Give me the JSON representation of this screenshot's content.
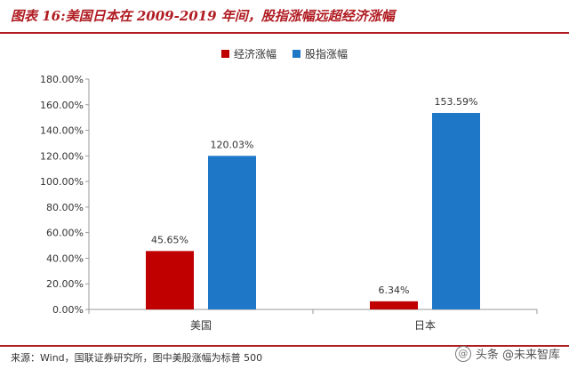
{
  "title": "图表 16:美国日本在 2009-2019 年间，股指涨幅远超经济涨幅",
  "source": "来源：Wind，国联证券研究所，图中美股涨幅为标普 500",
  "watermark": {
    "text": "头条 @未来智库",
    "logo_icon": "at-sign-icon"
  },
  "colors": {
    "economy": "#c00000",
    "stock": "#1f77c8",
    "accent": "#b01c22"
  },
  "chart_data": {
    "type": "bar",
    "title": "图表 16:美国日本在 2009-2019 年间，股指涨幅远超经济涨幅",
    "xlabel": "",
    "ylabel": "",
    "categories": [
      "美国",
      "日本"
    ],
    "series": [
      {
        "name": "经济涨幅",
        "values": [
          45.65,
          6.34
        ],
        "labels": [
          "45.65%",
          "6.34%"
        ]
      },
      {
        "name": "股指涨幅",
        "values": [
          120.03,
          153.59
        ],
        "labels": [
          "120.03%",
          "153.59%"
        ]
      }
    ],
    "ylim": [
      0,
      180
    ],
    "yticks": [
      0,
      20,
      40,
      60,
      80,
      100,
      120,
      140,
      160,
      180
    ],
    "ytick_labels": [
      "0.00%",
      "20.00%",
      "40.00%",
      "60.00%",
      "80.00%",
      "100.00%",
      "120.00%",
      "140.00%",
      "160.00%",
      "180.00%"
    ],
    "legend_position": "top-center",
    "grid": false
  }
}
